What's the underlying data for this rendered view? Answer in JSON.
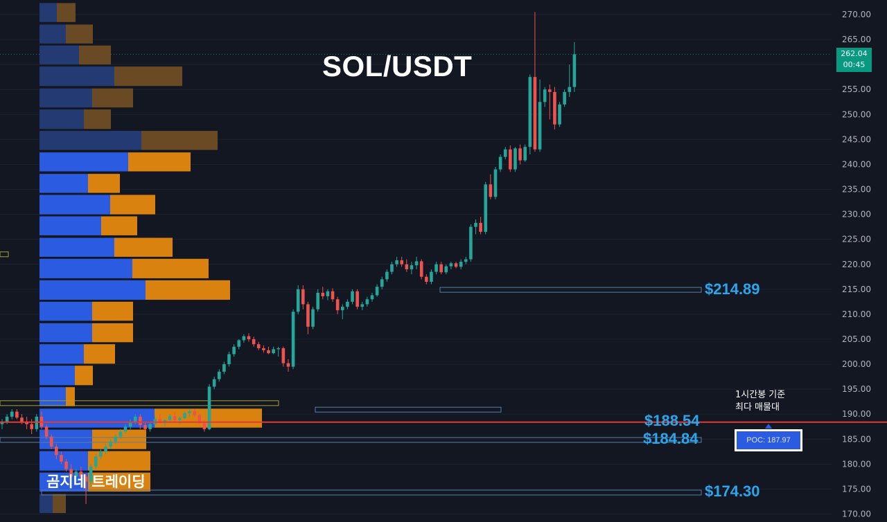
{
  "title": "SOL/USDT",
  "brand_label": "곰지네 트레이딩",
  "annotation": {
    "line1": "1시간봉 기준",
    "line2": "최다 매물대"
  },
  "poc_label": "POC: 187.97",
  "current_price": {
    "price": "262.04",
    "countdown": "00:45"
  },
  "colors": {
    "background": "#131722",
    "up": "#26a69a",
    "down": "#ef5350",
    "level_text": "#2aa6ec",
    "poc_line": "#e53935",
    "vp_up": "#2a5be0",
    "vp_down": "#d9820f"
  },
  "level_labels": [
    {
      "text": "$214.89",
      "price": 214.89
    },
    {
      "text": "$188.54",
      "price": 188.54
    },
    {
      "text": "$184.84",
      "price": 184.84
    },
    {
      "text": "$174.30",
      "price": 174.3
    }
  ],
  "chart_data": {
    "type": "candlestick",
    "title": "SOL/USDT",
    "ylim": [
      168.5,
      271.5
    ],
    "y_ticks": [
      "270.00",
      "265.00",
      "260.00",
      "255.00",
      "250.00",
      "245.00",
      "240.00",
      "235.00",
      "230.00",
      "225.00",
      "220.00",
      "215.00",
      "210.00",
      "205.00",
      "200.00",
      "195.00",
      "190.00",
      "185.00",
      "180.00",
      "175.00",
      "170.00"
    ],
    "poc_price": 187.97,
    "last_price": 262.04,
    "candles": [
      [
        188,
        189,
        187,
        188.5
      ],
      [
        188.5,
        190,
        188,
        189.5
      ],
      [
        189.5,
        191,
        189,
        190.5
      ],
      [
        190.5,
        191,
        189,
        189.3
      ],
      [
        189.3,
        190,
        188,
        188.5
      ],
      [
        188.5,
        189.5,
        187,
        188
      ],
      [
        188,
        189,
        186,
        187
      ],
      [
        187,
        190,
        186.5,
        189.5
      ],
      [
        189.5,
        190.5,
        187,
        187.5
      ],
      [
        187.5,
        188,
        185,
        185.5
      ],
      [
        185.5,
        186,
        183,
        183.5
      ],
      [
        183.5,
        184,
        181,
        181.8
      ],
      [
        181.8,
        182.5,
        180,
        180.5
      ],
      [
        180.5,
        181,
        178.5,
        179
      ],
      [
        179,
        180,
        177,
        177.5
      ],
      [
        177.5,
        179,
        176.5,
        178.5
      ],
      [
        178.5,
        179.5,
        177,
        177.5
      ],
      [
        177.5,
        178,
        172,
        176.5
      ],
      [
        176.5,
        180,
        175.5,
        179.5
      ],
      [
        179.5,
        182,
        179,
        181.5
      ],
      [
        181.5,
        183,
        181,
        182.5
      ],
      [
        182.5,
        184,
        182,
        183.5
      ],
      [
        183.5,
        185,
        183,
        184.5
      ],
      [
        184.5,
        186,
        184,
        185.5
      ],
      [
        185.5,
        187,
        185,
        186.5
      ],
      [
        186.5,
        188,
        186,
        187.5
      ],
      [
        187.5,
        189,
        187,
        188.5
      ],
      [
        188.5,
        190,
        188,
        189.5
      ],
      [
        189.5,
        190,
        187,
        187.8
      ],
      [
        187.8,
        188.5,
        186.5,
        187
      ],
      [
        187,
        188.5,
        186.5,
        188
      ],
      [
        188,
        189.5,
        187.5,
        189
      ],
      [
        189,
        190,
        188,
        188.4
      ],
      [
        188.4,
        189,
        187.5,
        188.8
      ],
      [
        188.8,
        190,
        188.5,
        189.6
      ],
      [
        189.6,
        190.5,
        188.5,
        188.8
      ],
      [
        188.8,
        189.5,
        188,
        189.2
      ],
      [
        189.2,
        190.5,
        189,
        190.2
      ],
      [
        190.2,
        191,
        189.5,
        190.6
      ],
      [
        190.6,
        191,
        189.5,
        189.8
      ],
      [
        189.8,
        190,
        188,
        188.2
      ],
      [
        188.2,
        188.8,
        186.5,
        187
      ],
      [
        187,
        196,
        186.8,
        195.5
      ],
      [
        195.5,
        197.5,
        195,
        197
      ],
      [
        197,
        199,
        196.5,
        198.5
      ],
      [
        198.5,
        200.5,
        198,
        200
      ],
      [
        200,
        202.5,
        199.5,
        202
      ],
      [
        202,
        204,
        201.5,
        203.5
      ],
      [
        203.5,
        205,
        203,
        204.8
      ],
      [
        204.8,
        206,
        204.3,
        205.6
      ],
      [
        205.6,
        206.2,
        204.5,
        205
      ],
      [
        205,
        205.5,
        203.5,
        204
      ],
      [
        204,
        204.5,
        202.8,
        203.2
      ],
      [
        203.2,
        203.8,
        202.3,
        202.8
      ],
      [
        202.8,
        203.5,
        202,
        202.2
      ],
      [
        202.2,
        203.5,
        202,
        203
      ],
      [
        203,
        203.5,
        201.5,
        203.2
      ],
      [
        203.2,
        203.5,
        199.5,
        200.2
      ],
      [
        200.2,
        201,
        198.5,
        199.5
      ],
      [
        199.5,
        211,
        199,
        210.5
      ],
      [
        210.5,
        215.8,
        210,
        215
      ],
      [
        215,
        215.8,
        211,
        212
      ],
      [
        212,
        212.5,
        206,
        207.5
      ],
      [
        207.5,
        211.5,
        207,
        211
      ],
      [
        211,
        215,
        210.5,
        214.3
      ],
      [
        214.3,
        215.5,
        213,
        213.6
      ],
      [
        213.6,
        215,
        212.8,
        214.6
      ],
      [
        214.6,
        215.2,
        212.5,
        213
      ],
      [
        213,
        213.5,
        210,
        210.8
      ],
      [
        210.8,
        212,
        209,
        211.5
      ],
      [
        211.5,
        213,
        211,
        212.5
      ],
      [
        212.5,
        215,
        212,
        214.6
      ],
      [
        214.6,
        215,
        211,
        211.5
      ],
      [
        211.5,
        212.5,
        210.8,
        212
      ],
      [
        212,
        213.5,
        211.5,
        213
      ],
      [
        213,
        214.3,
        212.5,
        213.8
      ],
      [
        213.8,
        216,
        213.5,
        215.5
      ],
      [
        215.5,
        217.5,
        215,
        217
      ],
      [
        217,
        219,
        216.5,
        218.5
      ],
      [
        218.5,
        220.5,
        218,
        220
      ],
      [
        220,
        221.5,
        219.5,
        220.8
      ],
      [
        220.8,
        221.5,
        219.5,
        220
      ],
      [
        220,
        221,
        218.5,
        219
      ],
      [
        219,
        220.5,
        218,
        219.8
      ],
      [
        219.8,
        221.5,
        219,
        220.6
      ],
      [
        220.6,
        221,
        217,
        217.5
      ],
      [
        217.5,
        218,
        216,
        216.5
      ],
      [
        216.5,
        219,
        216,
        218.5
      ],
      [
        218.5,
        220.5,
        218,
        220
      ],
      [
        220,
        220.5,
        218,
        218.4
      ],
      [
        218.4,
        220,
        218,
        219.6
      ],
      [
        219.6,
        220.5,
        219,
        220.2
      ],
      [
        220.2,
        220.5,
        219.2,
        219.5
      ],
      [
        219.5,
        221,
        219,
        220.5
      ],
      [
        220.5,
        221.5,
        220,
        221
      ],
      [
        221,
        228,
        220.5,
        227.5
      ],
      [
        227.5,
        229,
        226,
        228.3
      ],
      [
        228.3,
        229.5,
        226,
        226.5
      ],
      [
        226.5,
        236.5,
        226,
        236
      ],
      [
        236,
        238,
        233,
        233.5
      ],
      [
        233.5,
        239.5,
        233,
        239
      ],
      [
        239,
        242,
        238.5,
        241.5
      ],
      [
        241.5,
        243.5,
        241,
        243
      ],
      [
        243,
        243.8,
        238.5,
        239
      ],
      [
        239,
        243.5,
        238.5,
        243.2
      ],
      [
        243.2,
        244,
        240,
        240.8
      ],
      [
        240.8,
        244,
        240.5,
        243.5
      ],
      [
        243.5,
        258,
        242,
        257.5
      ],
      [
        257.5,
        270.5,
        242.5,
        243
      ],
      [
        243,
        257,
        242.5,
        252.5
      ],
      [
        252.5,
        255.5,
        251.5,
        255
      ],
      [
        255,
        256,
        249,
        254.5
      ],
      [
        254.5,
        255.5,
        247,
        248
      ],
      [
        248,
        252.5,
        247.5,
        252
      ],
      [
        252,
        255,
        251.5,
        254.5
      ],
      [
        254.5,
        260,
        253.5,
        255.5
      ],
      [
        255.5,
        264.5,
        254.5,
        262.04
      ]
    ],
    "volume_profile": [
      {
        "price_low": 268.5,
        "price_high": 272.3,
        "buy": 25,
        "sell": 27,
        "active": false
      },
      {
        "price_low": 264.2,
        "price_high": 268.0,
        "buy": 38,
        "sell": 39,
        "active": false
      },
      {
        "price_low": 260.0,
        "price_high": 263.8,
        "buy": 57,
        "sell": 46,
        "active": false
      },
      {
        "price_low": 255.7,
        "price_high": 259.6,
        "buy": 108,
        "sell": 98,
        "active": false
      },
      {
        "price_low": 251.4,
        "price_high": 255.2,
        "buy": 76,
        "sell": 59,
        "active": false
      },
      {
        "price_low": 247.1,
        "price_high": 251.0,
        "buy": 64,
        "sell": 39,
        "active": false
      },
      {
        "price_low": 242.9,
        "price_high": 246.7,
        "buy": 147,
        "sell": 110,
        "active": false
      },
      {
        "price_low": 238.6,
        "price_high": 242.4,
        "buy": 128,
        "sell": 90,
        "active": true
      },
      {
        "price_low": 234.3,
        "price_high": 238.1,
        "buy": 70,
        "sell": 46,
        "active": true
      },
      {
        "price_low": 230.0,
        "price_high": 233.9,
        "buy": 102,
        "sell": 65,
        "active": true
      },
      {
        "price_low": 225.8,
        "price_high": 229.6,
        "buy": 89,
        "sell": 52,
        "active": true
      },
      {
        "price_low": 221.5,
        "price_high": 225.3,
        "buy": 108,
        "sell": 84,
        "active": true
      },
      {
        "price_low": 217.2,
        "price_high": 221.1,
        "buy": 134,
        "sell": 110,
        "active": true
      },
      {
        "price_low": 212.9,
        "price_high": 216.8,
        "buy": 153,
        "sell": 122,
        "active": true
      },
      {
        "price_low": 208.7,
        "price_high": 212.5,
        "buy": 76,
        "sell": 59,
        "active": true
      },
      {
        "price_low": 204.4,
        "price_high": 208.2,
        "buy": 76,
        "sell": 59,
        "active": true
      },
      {
        "price_low": 200.1,
        "price_high": 204.0,
        "buy": 64,
        "sell": 45,
        "active": true
      },
      {
        "price_low": 195.8,
        "price_high": 199.7,
        "buy": 51,
        "sell": 26,
        "active": true
      },
      {
        "price_low": 191.6,
        "price_high": 195.4,
        "buy": 38,
        "sell": 13,
        "active": true
      },
      {
        "price_low": 187.3,
        "price_high": 191.1,
        "buy": 166,
        "sell": 155,
        "active": true
      },
      {
        "price_low": 183.0,
        "price_high": 186.9,
        "buy": 76,
        "sell": 78,
        "active": true
      },
      {
        "price_low": 178.7,
        "price_high": 182.6,
        "buy": 70,
        "sell": 90,
        "active": true
      },
      {
        "price_low": 174.5,
        "price_high": 178.3,
        "buy": 70,
        "sell": 90,
        "active": true
      },
      {
        "price_low": 170.2,
        "price_high": 174.0,
        "buy": 19,
        "sell": 19,
        "active": false
      }
    ]
  }
}
